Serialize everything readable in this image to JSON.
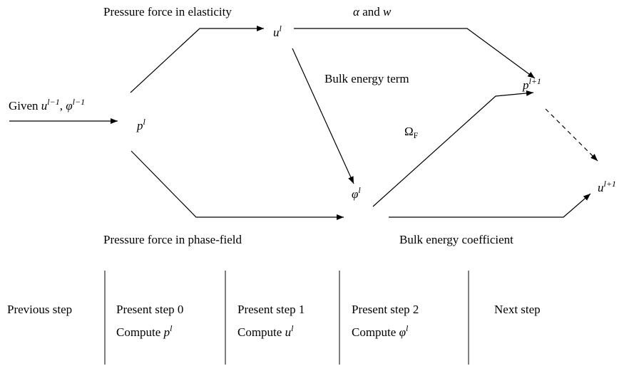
{
  "labels": [
    {
      "segments": [
        {
          "text": "Pressure force in elasticity"
        }
      ]
    },
    {
      "segments": [
        {
          "text": "α",
          "italic": true
        },
        {
          "text": " and "
        },
        {
          "text": "w",
          "italic": true
        }
      ]
    },
    {
      "segments": [
        {
          "text": "Bulk energy term"
        }
      ]
    },
    {
      "segments": [
        {
          "text": "Given "
        },
        {
          "text": "u",
          "italic": true
        },
        {
          "text": "l−1",
          "italic": true,
          "sup": true
        },
        {
          "text": ", "
        },
        {
          "text": "φ",
          "italic": true
        },
        {
          "text": "l−1",
          "italic": true,
          "sup": true
        }
      ]
    },
    {
      "segments": [
        {
          "text": "Ω"
        },
        {
          "text": "F",
          "sub": true
        }
      ]
    },
    {
      "segments": [
        {
          "text": "Pressure force in phase-field"
        }
      ]
    },
    {
      "segments": [
        {
          "text": "Bulk energy coefficient"
        }
      ]
    }
  ],
  "nodes": [
    {
      "segments": [
        {
          "text": "u",
          "italic": true
        },
        {
          "text": "l",
          "italic": true,
          "sup": true
        }
      ]
    },
    {
      "segments": [
        {
          "text": "p",
          "italic": true
        },
        {
          "text": "l+1",
          "italic": true,
          "sup": true
        }
      ]
    },
    {
      "segments": [
        {
          "text": "p",
          "italic": true
        },
        {
          "text": "l",
          "italic": true,
          "sup": true
        }
      ]
    },
    {
      "segments": [
        {
          "text": "φ",
          "italic": true
        },
        {
          "text": "l",
          "italic": true,
          "sup": true
        }
      ]
    },
    {
      "segments": [
        {
          "text": "u",
          "italic": true
        },
        {
          "text": "l+1",
          "italic": true,
          "sup": true
        }
      ]
    }
  ],
  "steps": [
    {
      "title": {
        "segments": [
          {
            "text": "Previous step"
          }
        ]
      }
    },
    {
      "title": {
        "segments": [
          {
            "text": "Present step 0"
          }
        ]
      },
      "compute": {
        "segments": [
          {
            "text": "Compute "
          },
          {
            "text": "p",
            "italic": true
          },
          {
            "text": "l",
            "italic": true,
            "sup": true
          }
        ]
      }
    },
    {
      "title": {
        "segments": [
          {
            "text": "Present step 1"
          }
        ]
      },
      "compute": {
        "segments": [
          {
            "text": "Compute "
          },
          {
            "text": "u",
            "italic": true
          },
          {
            "text": "l",
            "italic": true,
            "sup": true
          }
        ]
      }
    },
    {
      "title": {
        "segments": [
          {
            "text": "Present step 2"
          }
        ]
      },
      "compute": {
        "segments": [
          {
            "text": "Compute "
          },
          {
            "text": "φ",
            "italic": true
          },
          {
            "text": "l",
            "italic": true,
            "sup": true
          }
        ]
      }
    },
    {
      "title": {
        "segments": [
          {
            "text": "Next step"
          }
        ]
      }
    }
  ]
}
